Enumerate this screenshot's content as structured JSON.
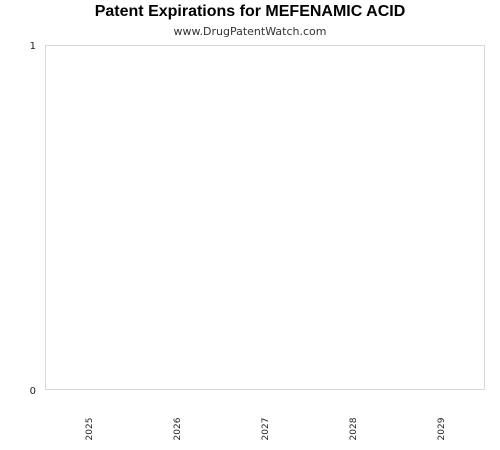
{
  "chart_data": {
    "type": "bar",
    "title": "Patent Expirations for MEFENAMIC ACID",
    "subtitle": "www.DrugPatentWatch.com",
    "categories": [
      "2025",
      "2026",
      "2027",
      "2028",
      "2029"
    ],
    "values": [
      0,
      0,
      0,
      0,
      0
    ],
    "ylim": [
      0,
      1
    ],
    "yticks": [
      "0",
      "1"
    ],
    "xlabel": "",
    "ylabel": "",
    "grid": false,
    "x_tick_rotation": "vertical"
  }
}
